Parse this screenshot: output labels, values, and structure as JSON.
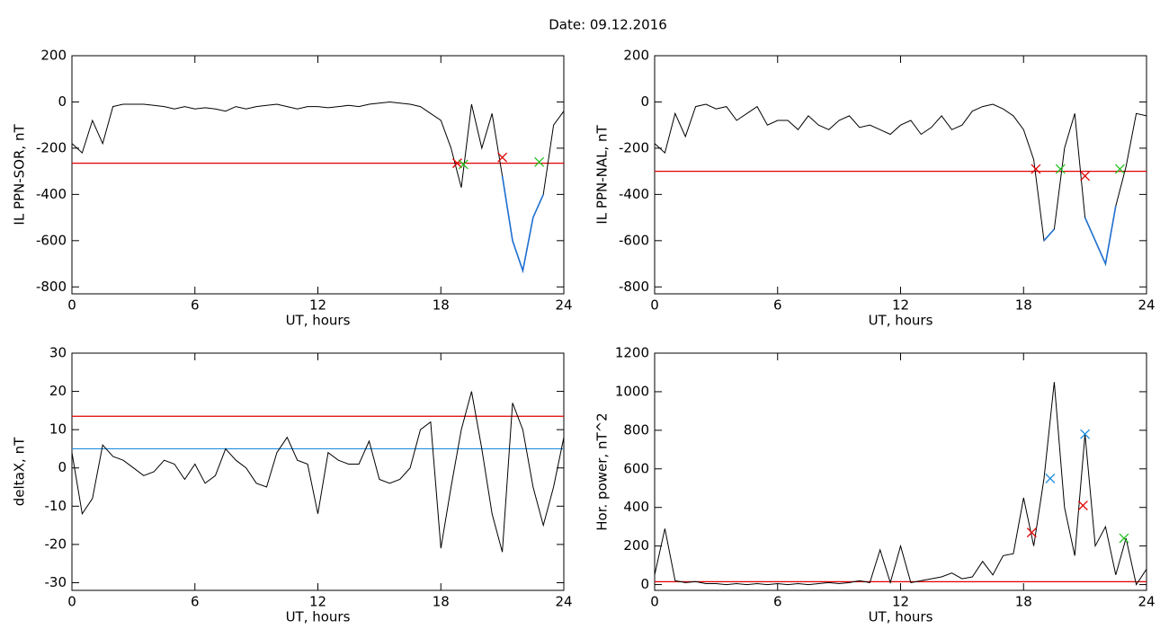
{
  "title": "Date:  09.12.2016",
  "chart_data": [
    {
      "type": "line",
      "xlabel": "UT, hours",
      "ylabel": "IL PPN-SOR, nT",
      "x": [
        0,
        0.5,
        1,
        1.5,
        2,
        2.5,
        3,
        3.5,
        4,
        4.5,
        5,
        5.5,
        6,
        6.5,
        7,
        7.5,
        8,
        8.5,
        9,
        9.5,
        10,
        10.5,
        11,
        11.5,
        12,
        12.5,
        13,
        13.5,
        14,
        14.5,
        15,
        15.5,
        16,
        16.5,
        17,
        17.5,
        18,
        18.5,
        19,
        19.5,
        20,
        20.5,
        21,
        21.5,
        22,
        22.5,
        23,
        23.5,
        24
      ],
      "xlim": [
        0,
        24
      ],
      "xticks": [
        0,
        6,
        12,
        18,
        24
      ],
      "ylim": [
        -830,
        200
      ],
      "yticks": [
        -800,
        -600,
        -400,
        -200,
        0,
        200
      ],
      "series": [
        {
          "color": "#000000",
          "values": [
            -180,
            -220,
            -80,
            -180,
            -20,
            -10,
            -10,
            -10,
            -15,
            -20,
            -30,
            -20,
            -30,
            -25,
            -30,
            -40,
            -20,
            -30,
            -20,
            -15,
            -10,
            -20,
            -30,
            -20,
            -20,
            -25,
            -20,
            -15,
            -20,
            -10,
            -5,
            0,
            -5,
            -10,
            -20,
            -50,
            -80,
            -200,
            -370,
            -10,
            -200,
            -50,
            -320,
            -600,
            -730,
            -500,
            -400,
            -100,
            -40
          ]
        },
        {
          "color": "#1f6fd0",
          "values": [
            null,
            null,
            null,
            null,
            null,
            null,
            null,
            null,
            null,
            null,
            null,
            null,
            null,
            null,
            null,
            null,
            null,
            null,
            null,
            null,
            null,
            null,
            null,
            null,
            null,
            null,
            null,
            null,
            null,
            null,
            null,
            null,
            null,
            null,
            null,
            null,
            null,
            null,
            -370,
            null,
            null,
            null,
            -320,
            -600,
            -730,
            -500,
            -400,
            null,
            null
          ]
        }
      ],
      "hlines": [
        {
          "value": -265,
          "color": "#e00000"
        }
      ],
      "markers": {
        "x": [
          18.8,
          19.1,
          21,
          22.8
        ],
        "y": [
          -265,
          -270,
          -240,
          -260
        ],
        "colors": [
          "#e00000",
          "#20c020",
          "#e00000",
          "#20c020"
        ]
      }
    },
    {
      "type": "line",
      "xlabel": "UT, hours",
      "ylabel": "IL PPN-NAL, nT",
      "x": [
        0,
        0.5,
        1,
        1.5,
        2,
        2.5,
        3,
        3.5,
        4,
        4.5,
        5,
        5.5,
        6,
        6.5,
        7,
        7.5,
        8,
        8.5,
        9,
        9.5,
        10,
        10.5,
        11,
        11.5,
        12,
        12.5,
        13,
        13.5,
        14,
        14.5,
        15,
        15.5,
        16,
        16.5,
        17,
        17.5,
        18,
        18.5,
        19,
        19.5,
        20,
        20.5,
        21,
        21.5,
        22,
        22.5,
        23,
        23.5,
        24
      ],
      "xlim": [
        0,
        24
      ],
      "xticks": [
        0,
        6,
        12,
        18,
        24
      ],
      "ylim": [
        -830,
        200
      ],
      "yticks": [
        -800,
        -600,
        -400,
        -200,
        0,
        200
      ],
      "series": [
        {
          "color": "#000000",
          "values": [
            -180,
            -220,
            -50,
            -150,
            -20,
            -10,
            -30,
            -20,
            -80,
            -50,
            -20,
            -100,
            -80,
            -80,
            -120,
            -60,
            -100,
            -120,
            -80,
            -60,
            -110,
            -100,
            -120,
            -140,
            -100,
            -80,
            -140,
            -110,
            -60,
            -120,
            -100,
            -40,
            -20,
            -10,
            -30,
            -60,
            -120,
            -250,
            -600,
            -550,
            -200,
            -50,
            -500,
            -600,
            -700,
            -450,
            -280,
            -50,
            -60
          ]
        },
        {
          "color": "#1f6fd0",
          "values": [
            null,
            null,
            null,
            null,
            null,
            null,
            null,
            null,
            null,
            null,
            null,
            null,
            null,
            null,
            null,
            null,
            null,
            null,
            null,
            null,
            null,
            null,
            null,
            null,
            null,
            null,
            null,
            null,
            null,
            null,
            null,
            null,
            null,
            null,
            null,
            null,
            null,
            null,
            -600,
            -550,
            null,
            null,
            -500,
            -600,
            -700,
            -450,
            null,
            null,
            null
          ]
        }
      ],
      "hlines": [
        {
          "value": -300,
          "color": "#e00000"
        }
      ],
      "markers": {
        "x": [
          18.6,
          19.8,
          21,
          22.7
        ],
        "y": [
          -290,
          -290,
          -320,
          -290
        ],
        "colors": [
          "#e00000",
          "#20c020",
          "#e00000",
          "#20c020"
        ]
      }
    },
    {
      "type": "line",
      "xlabel": "UT, hours",
      "ylabel": "deltaX, nT",
      "x": [
        0,
        0.5,
        1,
        1.5,
        2,
        2.5,
        3,
        3.5,
        4,
        4.5,
        5,
        5.5,
        6,
        6.5,
        7,
        7.5,
        8,
        8.5,
        9,
        9.5,
        10,
        10.5,
        11,
        11.5,
        12,
        12.5,
        13,
        13.5,
        14,
        14.5,
        15,
        15.5,
        16,
        16.5,
        17,
        17.5,
        18,
        18.5,
        19,
        19.5,
        20,
        20.5,
        21,
        21.5,
        22,
        22.5,
        23,
        23.5,
        24
      ],
      "xlim": [
        0,
        24
      ],
      "xticks": [
        0,
        6,
        12,
        18,
        24
      ],
      "ylim": [
        -32,
        30
      ],
      "yticks": [
        -30,
        -20,
        -10,
        0,
        10,
        20,
        30
      ],
      "series": [
        {
          "color": "#000000",
          "values": [
            4,
            -12,
            -8,
            6,
            3,
            2,
            0,
            -2,
            -1,
            2,
            1,
            -3,
            1,
            -4,
            -2,
            5,
            2,
            0,
            -4,
            -5,
            4,
            8,
            2,
            1,
            -12,
            4,
            2,
            1,
            1,
            7,
            -3,
            -4,
            -3,
            0,
            10,
            12,
            -21,
            -5,
            10,
            20,
            5,
            -12,
            -22,
            17,
            10,
            -5,
            -15,
            -5,
            8
          ]
        }
      ],
      "hlines": [
        {
          "value": 13.5,
          "color": "#e00000"
        },
        {
          "value": 5,
          "color": "#1f8fe0"
        }
      ]
    },
    {
      "type": "line",
      "xlabel": "UT, hours",
      "ylabel": "Hor. power, nT^2",
      "x": [
        0,
        0.5,
        1,
        1.5,
        2,
        2.5,
        3,
        3.5,
        4,
        4.5,
        5,
        5.5,
        6,
        6.5,
        7,
        7.5,
        8,
        8.5,
        9,
        9.5,
        10,
        10.5,
        11,
        11.5,
        12,
        12.5,
        13,
        13.5,
        14,
        14.5,
        15,
        15.5,
        16,
        16.5,
        17,
        17.5,
        18,
        18.5,
        19,
        19.5,
        20,
        20.5,
        21,
        21.5,
        22,
        22.5,
        23,
        23.5,
        24
      ],
      "xlim": [
        0,
        24
      ],
      "xticks": [
        0,
        6,
        12,
        18,
        24
      ],
      "ylim": [
        -30,
        1200
      ],
      "yticks": [
        0,
        200,
        400,
        600,
        800,
        1000,
        1200
      ],
      "series": [
        {
          "color": "#000000",
          "values": [
            50,
            290,
            20,
            10,
            15,
            5,
            5,
            0,
            5,
            0,
            5,
            0,
            5,
            0,
            5,
            0,
            5,
            10,
            5,
            10,
            20,
            10,
            180,
            10,
            200,
            10,
            20,
            30,
            40,
            60,
            30,
            40,
            120,
            50,
            150,
            160,
            450,
            200,
            550,
            1050,
            400,
            150,
            780,
            200,
            300,
            50,
            240,
            0,
            80
          ]
        }
      ],
      "hlines": [
        {
          "value": 15,
          "color": "#e00000"
        }
      ],
      "markers": {
        "x": [
          18.4,
          19.3,
          20.9,
          21,
          22.9
        ],
        "y": [
          270,
          550,
          410,
          780,
          240
        ],
        "colors": [
          "#e00000",
          "#1f8fe0",
          "#e00000",
          "#1f8fe0",
          "#20c020"
        ]
      }
    }
  ]
}
